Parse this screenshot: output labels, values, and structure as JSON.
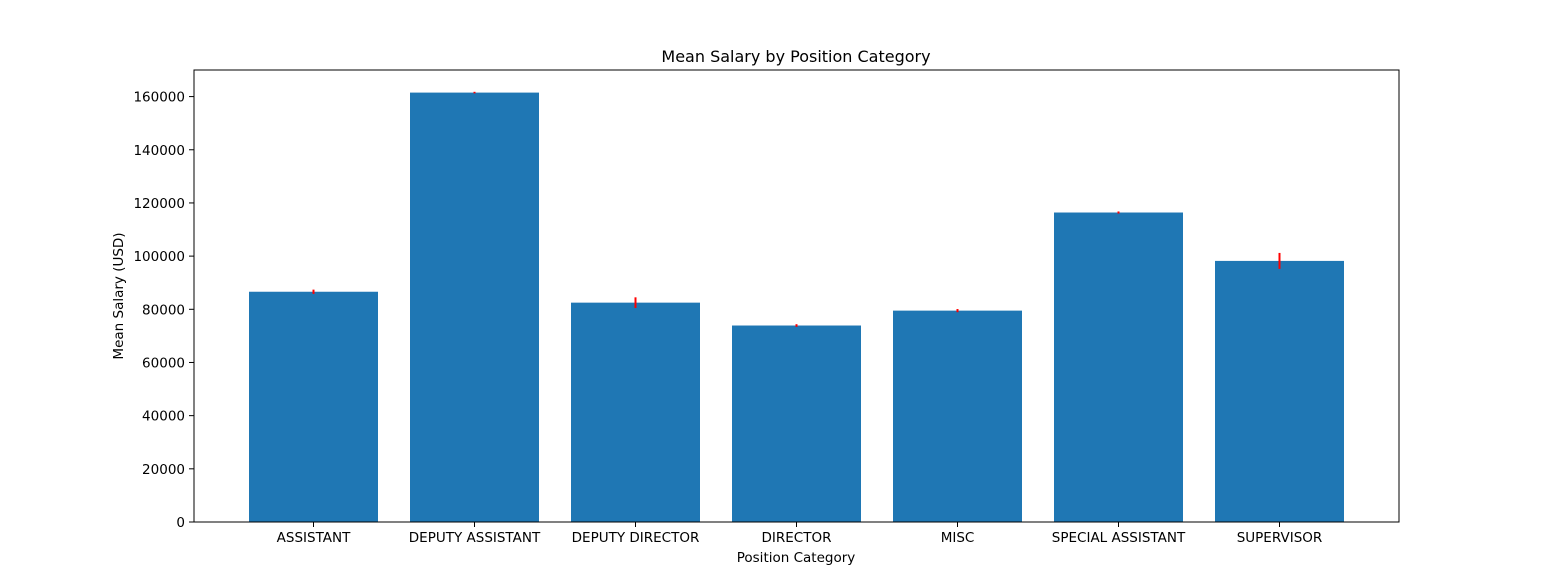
{
  "chart_data": {
    "type": "bar",
    "title": "Mean Salary by Position Category",
    "xlabel": "Position Category",
    "ylabel": "Mean Salary (USD)",
    "categories": [
      "ASSISTANT",
      "DEPUTY ASSISTANT",
      "DEPUTY DIRECTOR",
      "DIRECTOR",
      "MISC",
      "SPECIAL ASSISTANT",
      "SUPERVISOR"
    ],
    "values": [
      86600,
      161500,
      82500,
      73900,
      79500,
      116400,
      98200
    ],
    "error": [
      800,
      300,
      2000,
      500,
      600,
      400,
      3000
    ],
    "ylim": [
      0,
      170000
    ],
    "yticks": [
      0,
      20000,
      40000,
      60000,
      80000,
      100000,
      120000,
      140000,
      160000
    ],
    "bar_color": "#1f77b4",
    "error_color": "#ff0000",
    "grid": false,
    "legend": false
  }
}
